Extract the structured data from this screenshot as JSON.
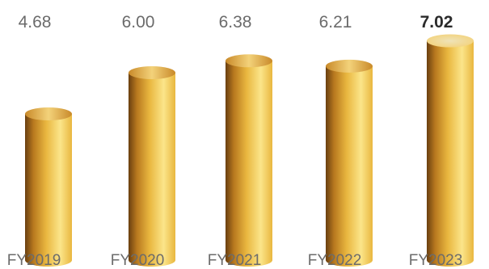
{
  "chart_data": {
    "type": "bar",
    "categories": [
      "FY2019",
      "FY2020",
      "FY2021",
      "FY2022",
      "FY2023"
    ],
    "values": [
      4.68,
      6.0,
      6.38,
      6.21,
      7.02
    ],
    "value_labels": [
      "4.68",
      "6.00",
      "6.38",
      "6.21",
      "7.02"
    ],
    "highlight_index": 4,
    "title": "",
    "xlabel": "",
    "ylabel": "",
    "ylim": [
      0,
      7.5
    ],
    "grid": false,
    "legend": "none",
    "colors": {
      "cylinder_light": "#fbe58a",
      "cylinder_mid": "#e9b73f",
      "cylinder_dark": "#6a3f10",
      "cylinder_shade": "#b8791f",
      "top_light": "#f3d27a",
      "top_dark": "#c98a2a",
      "top_face_highlight": "#efe3b8",
      "label_text": "#6b6b6b",
      "highlight_text": "#2b2b2b"
    }
  }
}
